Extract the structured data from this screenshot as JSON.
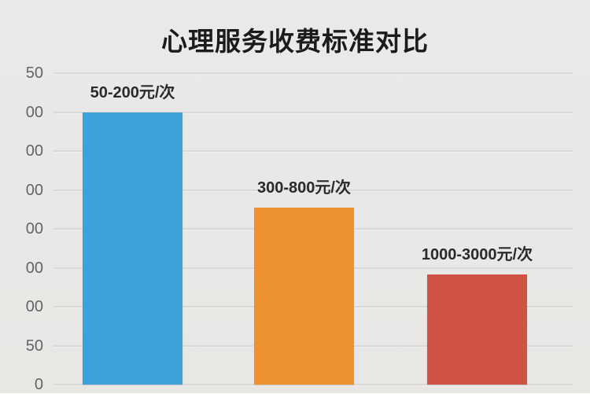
{
  "chart_data": {
    "type": "bar",
    "title": "心理服务收费标准对比",
    "categories": [
      "50-200元/次",
      "300-800元/次",
      "1000-3000元/次"
    ],
    "values": [
      350,
      227,
      141
    ],
    "ylim": [
      0,
      400
    ],
    "grid": true,
    "legend": false,
    "yaxis": {
      "tick_labels_visible_top_to_bottom": [
        "50",
        "00",
        "00",
        "00",
        "00",
        "00",
        "00",
        "50",
        "0"
      ],
      "tick_label_color": "#666462"
    },
    "bar_colors": [
      "#3da2d9",
      "#ee9133",
      "#cf5347"
    ],
    "background_color": "#e9e8e6",
    "gridline_color": "#d9d8d5",
    "title_color": "#1b1b1b",
    "bar_label_color": "#2a2a2a"
  }
}
